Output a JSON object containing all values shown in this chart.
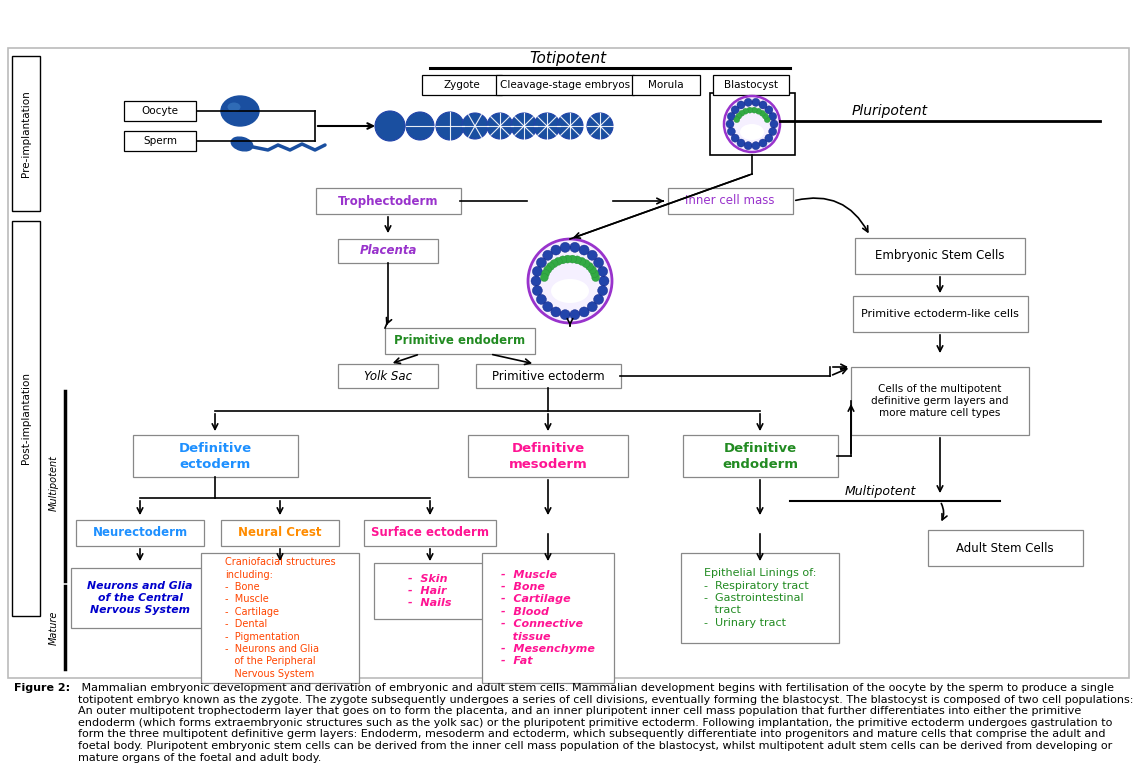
{
  "bg": "#ffffff",
  "totipotent_label": "Totipotent",
  "pluripotent_label": "Pluripotent",
  "multipotent_label": "Multipotent",
  "caption_bold": "Figure 2:",
  "caption": " Mammalian embryonic development and derivation of embryonic and adult stem cells. Mammalian development begins with fertilisation of the oocyte by the sperm to produce a single totipotent embryo known as the zygote. The zygote subsequently undergoes a series of cell divisions, eventually forming the blastocyst. The blastocyst is composed of two cell populations: An outer multipotent trophectoderm layer that goes on to form the placenta, and an inner pluripotent inner cell mass population that further differentiates into either the primitive endoderm (which forms extraembryonic structures such as the yolk sac) or the pluripotent primitive ectoderm. Following implantation, the primitive ectoderm undergoes gastrulation to form the three multipotent definitive germ layers: Endoderm, mesoderm and ectoderm, which subsequently differentiate into progenitors and mature cells that comprise the adult and foetal body. Pluripotent embryonic stem cells can be derived from the inner cell mass population of the blastocyst, whilst multipotent adult stem cells can be derived from developing or mature organs of the foetal and adult body.",
  "c_purple": "#9933cc",
  "c_green": "#228B22",
  "c_blue": "#1E90FF",
  "c_magenta": "#FF1493",
  "c_orange": "#FF8C00",
  "c_red": "#FF4500",
  "c_dkblue": "#0000cc",
  "c_black": "#000000",
  "c_gray": "#888888",
  "c_ltgray": "#aaaaaa",
  "c_emb": "#1a4fa0",
  "c_def_endo": "#228B22",
  "c_neuro": "#1E90FF",
  "c_surf": "#FF1493"
}
